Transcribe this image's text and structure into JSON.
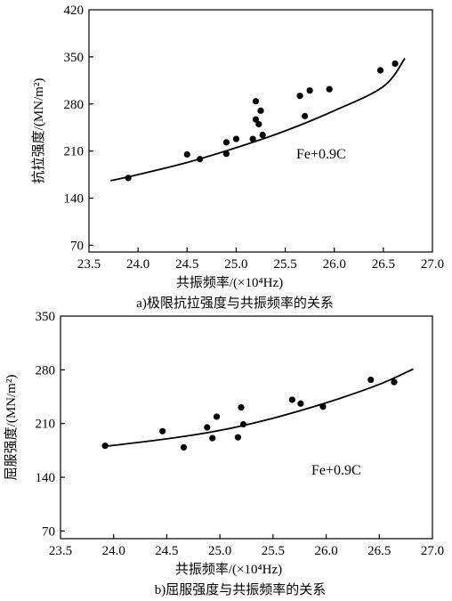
{
  "chart_data": [
    {
      "type": "scatter",
      "panel": "a",
      "caption": "a)极限抗拉强度与共振频率的关系",
      "xlabel": "共振频率/(×10⁴Hz)",
      "ylabel": "抗拉强度/(MN/m²)",
      "xlim": [
        23.5,
        27.0
      ],
      "ylim": [
        60,
        420
      ],
      "xticks": [
        "23.5",
        "24.0",
        "24.5",
        "25.0",
        "25.5",
        "26.0",
        "26.5",
        "27.0"
      ],
      "yticks": [
        "70",
        "140",
        "210",
        "280",
        "350",
        "420"
      ],
      "grid": false,
      "annotation": "Fe+0.9C",
      "points": [
        {
          "x": 23.9,
          "y": 170
        },
        {
          "x": 24.5,
          "y": 205
        },
        {
          "x": 24.63,
          "y": 198
        },
        {
          "x": 24.9,
          "y": 206
        },
        {
          "x": 24.9,
          "y": 223
        },
        {
          "x": 25.0,
          "y": 228
        },
        {
          "x": 25.17,
          "y": 228
        },
        {
          "x": 25.2,
          "y": 257
        },
        {
          "x": 25.23,
          "y": 250
        },
        {
          "x": 25.2,
          "y": 284
        },
        {
          "x": 25.25,
          "y": 270
        },
        {
          "x": 25.27,
          "y": 234
        },
        {
          "x": 25.65,
          "y": 292
        },
        {
          "x": 25.7,
          "y": 262
        },
        {
          "x": 25.75,
          "y": 300
        },
        {
          "x": 25.95,
          "y": 302
        },
        {
          "x": 26.47,
          "y": 330
        },
        {
          "x": 26.62,
          "y": 340
        }
      ],
      "fit": {
        "x": [
          23.72,
          24.0,
          24.5,
          25.0,
          25.5,
          26.0,
          26.5,
          26.72
        ],
        "y": [
          166,
          175,
          193,
          215,
          240,
          270,
          306,
          348
        ]
      }
    },
    {
      "type": "scatter",
      "panel": "b",
      "caption": "b)屈服强度与共振频率的关系",
      "xlabel": "共振频率/(×10⁴Hz)",
      "ylabel": "屈服强度/(MN/m²)",
      "xlim": [
        23.5,
        27.0
      ],
      "ylim": [
        60,
        350
      ],
      "xticks": [
        "23.5",
        "24.0",
        "24.5",
        "25.0",
        "25.5",
        "26.0",
        "26.5",
        "27.0"
      ],
      "yticks": [
        "70",
        "140",
        "210",
        "280",
        "350"
      ],
      "grid": false,
      "annotation": "Fe+0.9C",
      "points": [
        {
          "x": 23.92,
          "y": 181
        },
        {
          "x": 24.46,
          "y": 200
        },
        {
          "x": 24.66,
          "y": 179
        },
        {
          "x": 24.88,
          "y": 205
        },
        {
          "x": 24.93,
          "y": 191
        },
        {
          "x": 24.97,
          "y": 219
        },
        {
          "x": 25.17,
          "y": 192
        },
        {
          "x": 25.2,
          "y": 231
        },
        {
          "x": 25.22,
          "y": 209
        },
        {
          "x": 25.68,
          "y": 241
        },
        {
          "x": 25.76,
          "y": 236
        },
        {
          "x": 25.97,
          "y": 232
        },
        {
          "x": 26.42,
          "y": 267
        },
        {
          "x": 26.64,
          "y": 264
        }
      ],
      "fit": {
        "x": [
          23.9,
          24.5,
          25.0,
          25.5,
          26.0,
          26.5,
          26.82
        ],
        "y": [
          180,
          190,
          201,
          217,
          237,
          261,
          281
        ]
      }
    }
  ]
}
